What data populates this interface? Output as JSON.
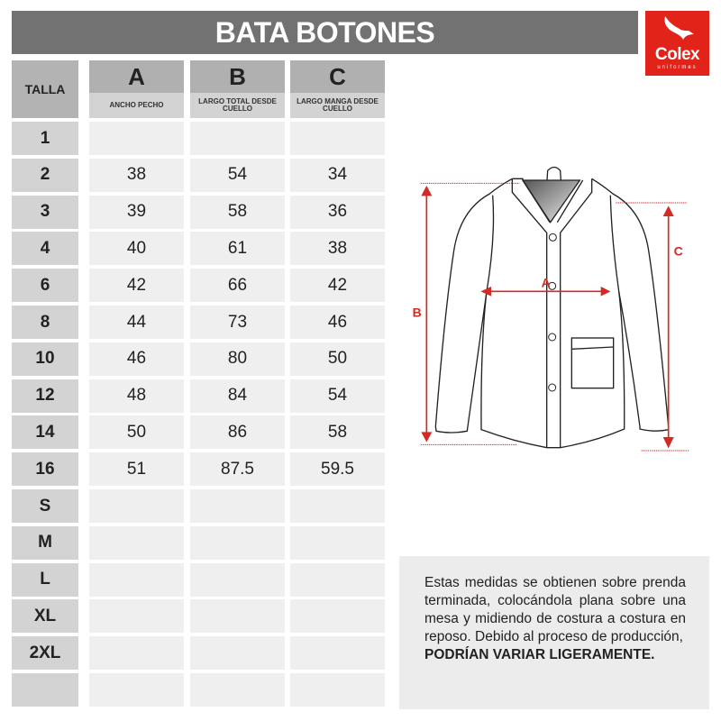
{
  "title": "BATA BOTONES",
  "logo": {
    "name": "Colex",
    "subtitle": "uniformes",
    "color": "#e2231a"
  },
  "table": {
    "size_header": "TALLA",
    "columns": [
      {
        "letter": "A",
        "label": "ANCHO PECHO"
      },
      {
        "letter": "B",
        "label": "LARGO TOTAL DESDE CUELLO"
      },
      {
        "letter": "C",
        "label": "LARGO MANGA DESDE CUELLO"
      }
    ],
    "rows": [
      {
        "size": "1",
        "values": [
          "",
          "",
          ""
        ]
      },
      {
        "size": "2",
        "values": [
          "38",
          "54",
          "34"
        ]
      },
      {
        "size": "3",
        "values": [
          "39",
          "58",
          "36"
        ]
      },
      {
        "size": "4",
        "values": [
          "40",
          "61",
          "38"
        ]
      },
      {
        "size": "6",
        "values": [
          "42",
          "66",
          "42"
        ]
      },
      {
        "size": "8",
        "values": [
          "44",
          "73",
          "46"
        ]
      },
      {
        "size": "10",
        "values": [
          "46",
          "80",
          "50"
        ]
      },
      {
        "size": "12",
        "values": [
          "48",
          "84",
          "54"
        ]
      },
      {
        "size": "14",
        "values": [
          "50",
          "86",
          "58"
        ]
      },
      {
        "size": "16",
        "values": [
          "51",
          "87.5",
          "59.5"
        ]
      },
      {
        "size": "S",
        "values": [
          "",
          "",
          ""
        ]
      },
      {
        "size": "M",
        "values": [
          "",
          "",
          ""
        ]
      },
      {
        "size": "L",
        "values": [
          "",
          "",
          ""
        ]
      },
      {
        "size": "XL",
        "values": [
          "",
          "",
          ""
        ]
      },
      {
        "size": "2XL",
        "values": [
          "",
          "",
          ""
        ]
      },
      {
        "size": "",
        "values": [
          "",
          "",
          ""
        ]
      }
    ]
  },
  "diagram": {
    "labels": {
      "a": "A",
      "b": "B",
      "c": "C"
    },
    "measure_color": "#d42a26"
  },
  "note": {
    "text": "Estas medidas se obtienen sobre prenda terminada, colocándola plana sobre una mesa y midiendo de costura a costura en reposo. Debido al proceso de producción,",
    "emphasis": "PODRÍAN VARIAR LIGERAMENTE."
  }
}
